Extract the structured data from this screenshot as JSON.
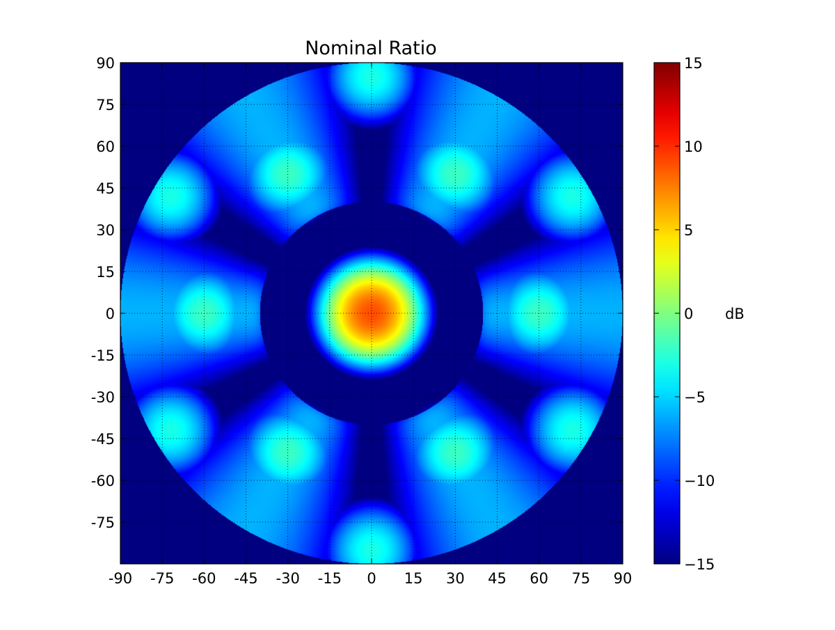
{
  "chart_data": {
    "type": "heatmap",
    "title": "Nominal Ratio",
    "xlabel": "",
    "ylabel": "",
    "xlim": [
      -90,
      90
    ],
    "ylim": [
      -90,
      90
    ],
    "x_ticks": [
      -90,
      -75,
      -60,
      -45,
      -30,
      -15,
      0,
      15,
      30,
      45,
      60,
      75,
      90
    ],
    "x_tick_labels": [
      "-90",
      "-75",
      "-60",
      "-45",
      "-30",
      "-15",
      "0",
      "15",
      "30",
      "45",
      "60",
      "75",
      "90"
    ],
    "y_ticks": [
      90,
      75,
      60,
      45,
      30,
      15,
      0,
      -15,
      -30,
      -45,
      -60,
      -75
    ],
    "y_tick_labels": [
      "90",
      "75",
      "60",
      "45",
      "30",
      "15",
      "0",
      "-15",
      "-30",
      "-45",
      "-60",
      "-75"
    ],
    "grid": true,
    "grid_style": "dotted",
    "colormap": "jet",
    "colorbar": {
      "label": "dB",
      "range": [
        -15,
        15
      ],
      "ticks": [
        15,
        10,
        5,
        0,
        -5,
        -10,
        -15
      ],
      "tick_labels": [
        "15",
        "10",
        "5",
        "0",
        "−5",
        "−10",
        "−15"
      ],
      "position": "right"
    },
    "visible_region": "disk of radius 90 centred at (0, 0); outside filled with minimum value",
    "features": {
      "central_peak": {
        "x": 0,
        "y": 0,
        "value_db": 9,
        "radius": 16
      },
      "dark_ring_around_center": {
        "radius": 34,
        "value_db": -15
      },
      "horizontal_lobes": [
        {
          "x": -60,
          "y": 0,
          "value_db": -2
        },
        {
          "x": 60,
          "y": 0,
          "value_db": -2
        }
      ],
      "diagonal_lobes": [
        {
          "x": -30,
          "y": 50,
          "value_db": -2
        },
        {
          "x": 30,
          "y": 50,
          "value_db": -2
        },
        {
          "x": -30,
          "y": -50,
          "value_db": -2
        },
        {
          "x": 30,
          "y": -50,
          "value_db": -2
        }
      ],
      "edge_lobes": [
        {
          "x": 0,
          "y": 85,
          "value_db": -3
        },
        {
          "x": 0,
          "y": -85,
          "value_db": -3
        },
        {
          "x": -72,
          "y": 42,
          "value_db": -3
        },
        {
          "x": 72,
          "y": 42,
          "value_db": -3
        },
        {
          "x": -72,
          "y": -42,
          "value_db": -3
        },
        {
          "x": 72,
          "y": -42,
          "value_db": -3
        }
      ]
    },
    "colors": {
      "background": "#ffffff",
      "axes_edge": "#000000",
      "grid": "#000000"
    }
  }
}
